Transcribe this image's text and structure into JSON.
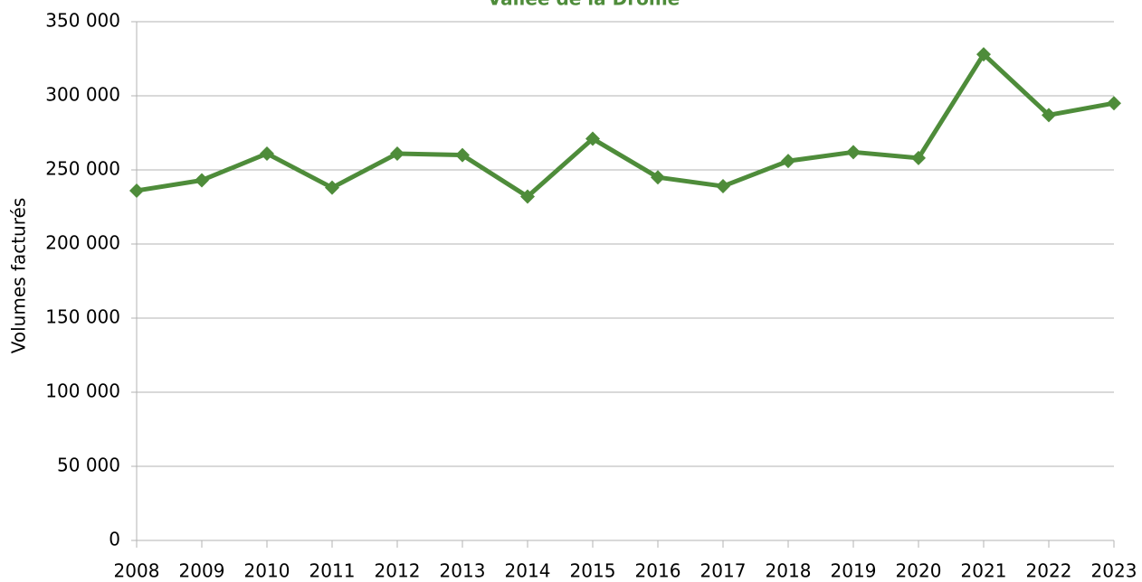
{
  "chart_data": {
    "type": "line",
    "title": "Vallée de la Drôme",
    "y_label": "Volumes facturés",
    "categories": [
      "2008",
      "2009",
      "2010",
      "2011",
      "2012",
      "2013",
      "2014",
      "2015",
      "2016",
      "2017",
      "2018",
      "2019",
      "2020",
      "2021",
      "2022",
      "2023"
    ],
    "series": [
      {
        "name": "Vallée de la Drôme",
        "color": "#4e8c3a",
        "values": [
          236000,
          243000,
          261000,
          238000,
          261000,
          260000,
          232000,
          271000,
          245000,
          239000,
          256000,
          262000,
          258000,
          328000,
          287000,
          295000
        ]
      }
    ],
    "ylim": [
      0,
      350000
    ],
    "yticks": [
      0,
      {
        "value": 50000,
        "label": "50 000"
      },
      {
        "value": 100000,
        "label": "100 000"
      },
      {
        "value": 150000,
        "label": "150 000"
      },
      {
        "value": 200000,
        "label": "200 000"
      },
      {
        "value": 250000,
        "label": "250 000"
      },
      {
        "value": 300000,
        "label": "300 000"
      },
      {
        "value": 350000,
        "label": "350 000"
      }
    ],
    "grid": true,
    "legend": false
  }
}
